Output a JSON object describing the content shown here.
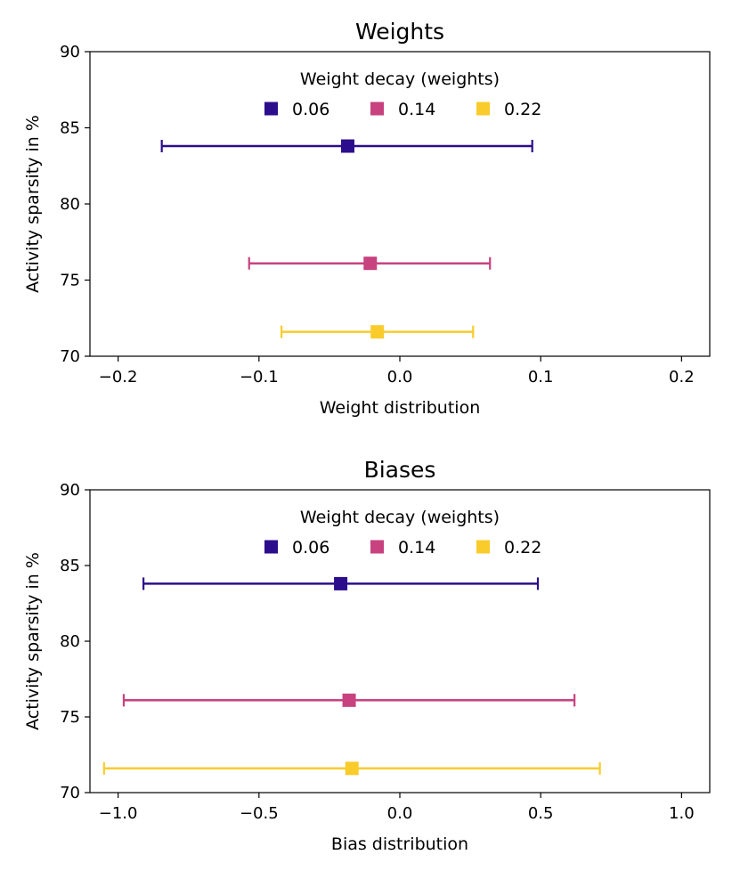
{
  "chart_data": [
    {
      "type": "errorbar",
      "title": "Weights",
      "xlabel": "Weight distribution",
      "ylabel": "Activity sparsity in %",
      "xlim": [
        -0.22,
        0.22
      ],
      "ylim": [
        70,
        90
      ],
      "xticks": [
        -0.2,
        -0.1,
        0.0,
        0.1,
        0.2
      ],
      "xtick_labels": [
        "−0.2",
        "−0.1",
        "0.0",
        "0.1",
        "0.2"
      ],
      "yticks": [
        70,
        75,
        80,
        85,
        90
      ],
      "ytick_labels": [
        "70",
        "75",
        "80",
        "85",
        "90"
      ],
      "legend": {
        "title": "Weight decay (weights)",
        "position": "upper-center",
        "entries": [
          "0.06",
          "0.14",
          "0.22"
        ]
      },
      "series": [
        {
          "name": "0.06",
          "color": "#2c0e8c",
          "x": -0.037,
          "y": 83.8,
          "xerr_low": -0.169,
          "xerr_high": 0.094
        },
        {
          "name": "0.14",
          "color": "#c7427f",
          "x": -0.021,
          "y": 76.1,
          "xerr_low": -0.107,
          "xerr_high": 0.064
        },
        {
          "name": "0.22",
          "color": "#f9cc2c",
          "x": -0.016,
          "y": 71.6,
          "xerr_low": -0.084,
          "xerr_high": 0.052
        }
      ]
    },
    {
      "type": "errorbar",
      "title": "Biases",
      "xlabel": "Bias distribution",
      "ylabel": "Activity sparsity in %",
      "xlim": [
        -1.1,
        1.1
      ],
      "ylim": [
        70,
        90
      ],
      "xticks": [
        -1.0,
        -0.5,
        0.0,
        0.5,
        1.0
      ],
      "xtick_labels": [
        "−1.0",
        "−0.5",
        "0.0",
        "0.5",
        "1.0"
      ],
      "yticks": [
        70,
        75,
        80,
        85,
        90
      ],
      "ytick_labels": [
        "70",
        "75",
        "80",
        "85",
        "90"
      ],
      "legend": {
        "title": "Weight decay (weights)",
        "position": "upper-center",
        "entries": [
          "0.06",
          "0.14",
          "0.22"
        ]
      },
      "series": [
        {
          "name": "0.06",
          "color": "#2c0e8c",
          "x": -0.21,
          "y": 83.8,
          "xerr_low": -0.91,
          "xerr_high": 0.49
        },
        {
          "name": "0.14",
          "color": "#c7427f",
          "x": -0.18,
          "y": 76.1,
          "xerr_low": -0.98,
          "xerr_high": 0.62
        },
        {
          "name": "0.22",
          "color": "#f9cc2c",
          "x": -0.17,
          "y": 71.6,
          "xerr_low": -1.05,
          "xerr_high": 0.71
        }
      ]
    }
  ]
}
